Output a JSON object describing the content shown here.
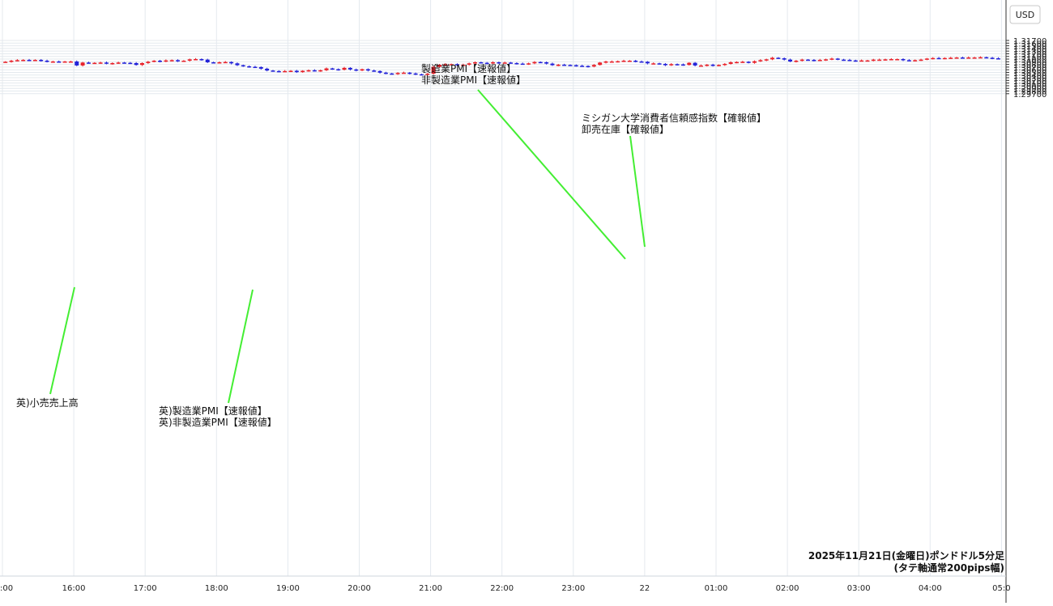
{
  "chart_data": {
    "type": "candlestick",
    "currency_label": "USD",
    "caption_line1": "2025年11月21日(金曜日)ポンドドル5分足",
    "caption_line2": "(タテ軸通常200pips幅)",
    "ylim": [
      1.297,
      1.318
    ],
    "y_ticks": [
      "1.31700",
      "1.31600",
      "1.31500",
      "1.31400",
      "1.31300",
      "1.31200",
      "1.31100",
      "1.31000",
      "1.30900",
      "1.30800",
      "1.30700",
      "1.30600",
      "1.30500",
      "1.30400",
      "1.30300",
      "1.30200",
      "1.30100",
      "1.30000",
      "1.29900",
      "1.29800",
      "1.29700"
    ],
    "x_ticks": [
      {
        "label": ":00",
        "t": 15.0
      },
      {
        "label": "16:00",
        "t": 16.0
      },
      {
        "label": "17:00",
        "t": 17.0
      },
      {
        "label": "18:00",
        "t": 18.0
      },
      {
        "label": "19:00",
        "t": 19.0
      },
      {
        "label": "20:00",
        "t": 20.0
      },
      {
        "label": "21:00",
        "t": 21.0
      },
      {
        "label": "22:00",
        "t": 22.0
      },
      {
        "label": "23:00",
        "t": 23.0
      },
      {
        "label": "22",
        "t": 24.0
      },
      {
        "label": "01:00",
        "t": 25.0
      },
      {
        "label": "02:00",
        "t": 26.0
      },
      {
        "label": "03:00",
        "t": 27.0
      },
      {
        "label": "04:00",
        "t": 28.0
      },
      {
        "label": "05:0",
        "t": 29.0
      }
    ],
    "up_color": "#e8232b",
    "down_color": "#2323d8",
    "annotation_line_color": "#44ee33",
    "closes": [
      1.309,
      1.3094,
      1.3096,
      1.3097,
      1.3096,
      1.3097,
      1.3094,
      1.309,
      1.3091,
      1.309,
      1.3091,
      1.3091,
      1.3076,
      1.3087,
      1.3086,
      1.3086,
      1.3087,
      1.3083,
      1.3085,
      1.3087,
      1.3086,
      1.3085,
      1.3078,
      1.3085,
      1.309,
      1.3094,
      1.3091,
      1.3095,
      1.3096,
      1.3092,
      1.3094,
      1.3099,
      1.31,
      1.3098,
      1.3088,
      1.3087,
      1.3088,
      1.3089,
      1.3084,
      1.3077,
      1.3073,
      1.3071,
      1.307,
      1.3064,
      1.3057,
      1.3055,
      1.3054,
      1.3055,
      1.3056,
      1.3051,
      1.3056,
      1.3058,
      1.3056,
      1.3058,
      1.3065,
      1.3062,
      1.306,
      1.3067,
      1.3061,
      1.3057,
      1.3062,
      1.3057,
      1.3055,
      1.3049,
      1.3046,
      1.3044,
      1.3048,
      1.3049,
      1.3046,
      1.3043,
      1.3041,
      1.3045,
      1.3071,
      1.3079,
      1.3081,
      1.3081,
      1.3077,
      1.3079,
      1.3084,
      1.3088,
      1.3086,
      1.3084,
      1.3088,
      1.3086,
      1.3087,
      1.3085,
      1.3083,
      1.3082,
      1.3084,
      1.3089,
      1.3088,
      1.3083,
      1.3077,
      1.3079,
      1.3078,
      1.3077,
      1.3075,
      1.3074,
      1.3072,
      1.3078,
      1.3087,
      1.3091,
      1.3091,
      1.3092,
      1.3094,
      1.3094,
      1.3091,
      1.309,
      1.3084,
      1.3084,
      1.3082,
      1.3077,
      1.3081,
      1.308,
      1.3078,
      1.3086,
      1.3076,
      1.3076,
      1.3079,
      1.3075,
      1.3078,
      1.3082,
      1.3088,
      1.3089,
      1.309,
      1.3086,
      1.3092,
      1.3096,
      1.3099,
      1.3105,
      1.3103,
      1.3098,
      1.3091,
      1.3094,
      1.3098,
      1.3097,
      1.3095,
      1.3097,
      1.3099,
      1.3102,
      1.3098,
      1.3097,
      1.3095,
      1.3094,
      1.3095,
      1.3095,
      1.3098,
      1.3098,
      1.3099,
      1.31,
      1.31,
      1.3096,
      1.3095,
      1.3096,
      1.3098,
      1.3102,
      1.3104,
      1.3103,
      1.3104,
      1.3105,
      1.3106,
      1.3105,
      1.3106,
      1.3106,
      1.3107,
      1.3105,
      1.3103,
      1.3102
    ],
    "annotations": [
      {
        "lines": [
          "英)小売売上高"
        ]
      },
      {
        "lines": [
          "英)製造業PMI【速報値】",
          "英)非製造業PMI【速報値】"
        ]
      },
      {
        "lines": [
          "製造業PMI【速報値】",
          "非製造業PMI【速報値】"
        ]
      },
      {
        "lines": [
          "ミシガン大学消費者信頼感指数【確報値】",
          "卸売在庫【確報値】"
        ]
      }
    ]
  }
}
